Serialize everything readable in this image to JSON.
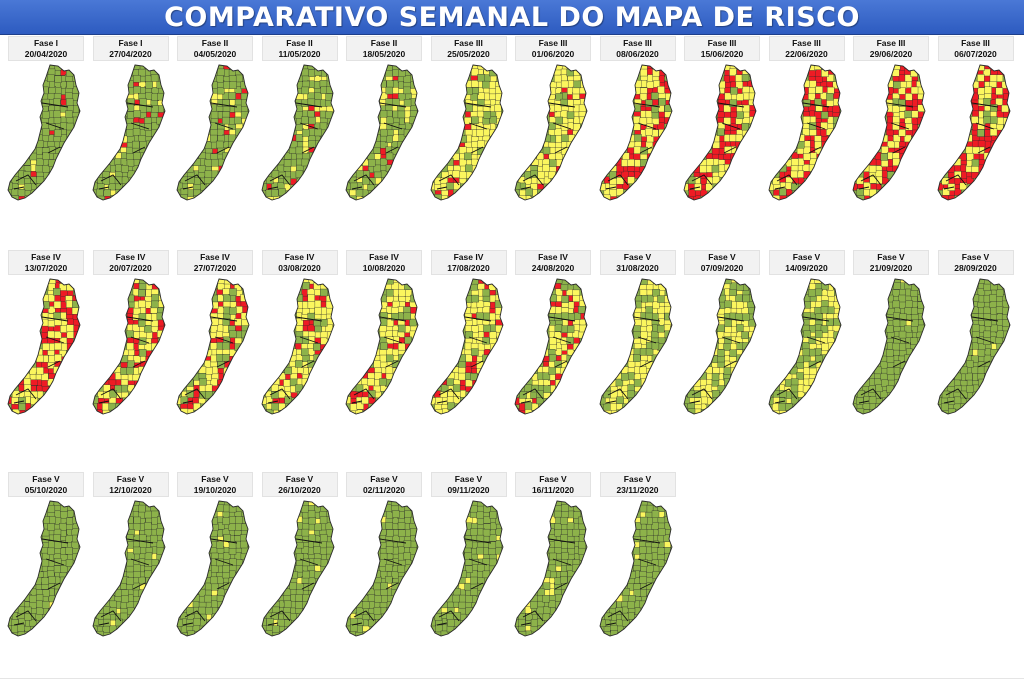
{
  "title": "COMPARATIVO SEMANAL DO MAPA DE RISCO",
  "colors": {
    "baixo": "#8db24a",
    "moderado": "#fbf65e",
    "alto": "#ee1b24",
    "border": "#2a2a2a",
    "banner": "#3a66cc"
  },
  "maps": [
    {
      "fase": "Fase I",
      "date": "20/04/2020",
      "risk": {
        "alto": 0.05,
        "moderado": 0.04,
        "baixo": 0.91
      }
    },
    {
      "fase": "Fase I",
      "date": "27/04/2020",
      "risk": {
        "alto": 0.07,
        "moderado": 0.12,
        "baixo": 0.81
      }
    },
    {
      "fase": "Fase II",
      "date": "04/05/2020",
      "risk": {
        "alto": 0.07,
        "moderado": 0.15,
        "baixo": 0.78
      }
    },
    {
      "fase": "Fase II",
      "date": "11/05/2020",
      "risk": {
        "alto": 0.06,
        "moderado": 0.2,
        "baixo": 0.74
      }
    },
    {
      "fase": "Fase II",
      "date": "18/05/2020",
      "risk": {
        "alto": 0.07,
        "moderado": 0.23,
        "baixo": 0.7
      }
    },
    {
      "fase": "Fase III",
      "date": "25/05/2020",
      "risk": {
        "alto": 0.08,
        "moderado": 0.72,
        "baixo": 0.2
      }
    },
    {
      "fase": "Fase III",
      "date": "01/06/2020",
      "risk": {
        "alto": 0.07,
        "moderado": 0.76,
        "baixo": 0.17
      }
    },
    {
      "fase": "Fase III",
      "date": "08/06/2020",
      "risk": {
        "alto": 0.42,
        "moderado": 0.48,
        "baixo": 0.1
      }
    },
    {
      "fase": "Fase III",
      "date": "15/06/2020",
      "risk": {
        "alto": 0.48,
        "moderado": 0.45,
        "baixo": 0.07
      }
    },
    {
      "fase": "Fase III",
      "date": "22/06/2020",
      "risk": {
        "alto": 0.46,
        "moderado": 0.45,
        "baixo": 0.09
      }
    },
    {
      "fase": "Fase III",
      "date": "29/06/2020",
      "risk": {
        "alto": 0.5,
        "moderado": 0.43,
        "baixo": 0.07
      }
    },
    {
      "fase": "Fase III",
      "date": "06/07/2020",
      "risk": {
        "alto": 0.55,
        "moderado": 0.38,
        "baixo": 0.07
      }
    },
    {
      "fase": "Fase IV",
      "date": "13/07/2020",
      "risk": {
        "alto": 0.45,
        "moderado": 0.5,
        "baixo": 0.05
      }
    },
    {
      "fase": "Fase IV",
      "date": "20/07/2020",
      "risk": {
        "alto": 0.3,
        "moderado": 0.48,
        "baixo": 0.22
      }
    },
    {
      "fase": "Fase IV",
      "date": "27/07/2020",
      "risk": {
        "alto": 0.25,
        "moderado": 0.5,
        "baixo": 0.25
      }
    },
    {
      "fase": "Fase IV",
      "date": "03/08/2020",
      "risk": {
        "alto": 0.18,
        "moderado": 0.62,
        "baixo": 0.2
      }
    },
    {
      "fase": "Fase IV",
      "date": "10/08/2020",
      "risk": {
        "alto": 0.18,
        "moderado": 0.62,
        "baixo": 0.2
      }
    },
    {
      "fase": "Fase IV",
      "date": "17/08/2020",
      "risk": {
        "alto": 0.18,
        "moderado": 0.62,
        "baixo": 0.2
      }
    },
    {
      "fase": "Fase IV",
      "date": "24/08/2020",
      "risk": {
        "alto": 0.2,
        "moderado": 0.48,
        "baixo": 0.32
      }
    },
    {
      "fase": "Fase V",
      "date": "31/08/2020",
      "risk": {
        "alto": 0.0,
        "moderado": 0.65,
        "baixo": 0.35
      }
    },
    {
      "fase": "Fase V",
      "date": "07/09/2020",
      "risk": {
        "alto": 0.0,
        "moderado": 0.58,
        "baixo": 0.42
      }
    },
    {
      "fase": "Fase V",
      "date": "14/09/2020",
      "risk": {
        "alto": 0.0,
        "moderado": 0.55,
        "baixo": 0.45
      }
    },
    {
      "fase": "Fase V",
      "date": "21/09/2020",
      "risk": {
        "alto": 0.0,
        "moderado": 0.02,
        "baixo": 0.98
      }
    },
    {
      "fase": "Fase V",
      "date": "28/09/2020",
      "risk": {
        "alto": 0.0,
        "moderado": 0.02,
        "baixo": 0.98
      }
    },
    {
      "fase": "Fase V",
      "date": "05/10/2020",
      "risk": {
        "alto": 0.0,
        "moderado": 0.01,
        "baixo": 0.99
      }
    },
    {
      "fase": "Fase V",
      "date": "12/10/2020",
      "risk": {
        "alto": 0.0,
        "moderado": 0.05,
        "baixo": 0.95
      }
    },
    {
      "fase": "Fase V",
      "date": "19/10/2020",
      "risk": {
        "alto": 0.0,
        "moderado": 0.05,
        "baixo": 0.95
      }
    },
    {
      "fase": "Fase V",
      "date": "26/10/2020",
      "risk": {
        "alto": 0.0,
        "moderado": 0.06,
        "baixo": 0.94
      }
    },
    {
      "fase": "Fase V",
      "date": "02/11/2020",
      "risk": {
        "alto": 0.0,
        "moderado": 0.04,
        "baixo": 0.96
      }
    },
    {
      "fase": "Fase V",
      "date": "09/11/2020",
      "risk": {
        "alto": 0.0,
        "moderado": 0.08,
        "baixo": 0.92
      }
    },
    {
      "fase": "Fase V",
      "date": "16/11/2020",
      "risk": {
        "alto": 0.0,
        "moderado": 0.1,
        "baixo": 0.9
      }
    },
    {
      "fase": "Fase V",
      "date": "23/11/2020",
      "risk": {
        "alto": 0.0,
        "moderado": 0.07,
        "baixo": 0.93
      }
    }
  ]
}
